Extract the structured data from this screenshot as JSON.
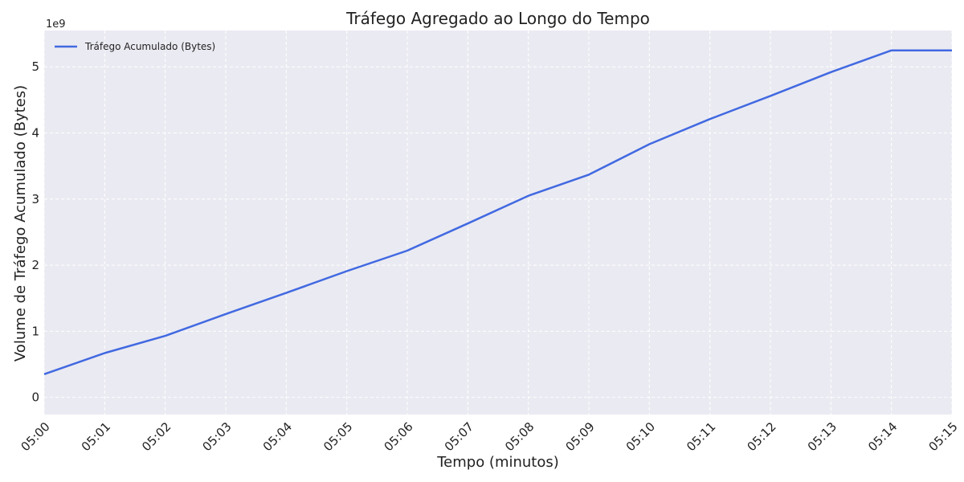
{
  "chart_data": {
    "type": "line",
    "title": "Tráfego Agregado ao Longo do Tempo",
    "xlabel": "Tempo (minutos)",
    "ylabel": "Volume de Tráfego Acumulado (Bytes)",
    "y_multiplier_label": "1e9",
    "x": [
      "05:00",
      "05:01",
      "05:02",
      "05:03",
      "05:04",
      "05:05",
      "05:06",
      "05:07",
      "05:08",
      "05:09",
      "05:10",
      "05:11",
      "05:12",
      "05:13",
      "05:14",
      "05:15"
    ],
    "x_tick_labels": [
      "05:00",
      "05:01",
      "05:02",
      "05:03",
      "05:04",
      "05:05",
      "05:06",
      "05:07",
      "05:08",
      "05:09",
      "05:10",
      "05:11",
      "05:12",
      "05:13",
      "05:14",
      "05:15"
    ],
    "y_ticks": [
      0,
      1,
      2,
      3,
      4,
      5
    ],
    "y_tick_labels": [
      "0",
      "1",
      "2",
      "3",
      "4",
      "5"
    ],
    "ylim": [
      -0.26,
      5.55
    ],
    "series": [
      {
        "name": "Tráfego Acumulado (Bytes)",
        "color": "#4169e1",
        "values": [
          0.35,
          0.67,
          0.93,
          1.26,
          1.58,
          1.91,
          2.22,
          2.63,
          3.05,
          3.37,
          3.83,
          4.21,
          4.56,
          4.92,
          5.25,
          5.25
        ]
      }
    ],
    "grid": true,
    "legend_position": "top-left",
    "colors": {
      "background": "#eaeaf2",
      "grid": "#ffffff",
      "line": "#4169e1"
    }
  }
}
